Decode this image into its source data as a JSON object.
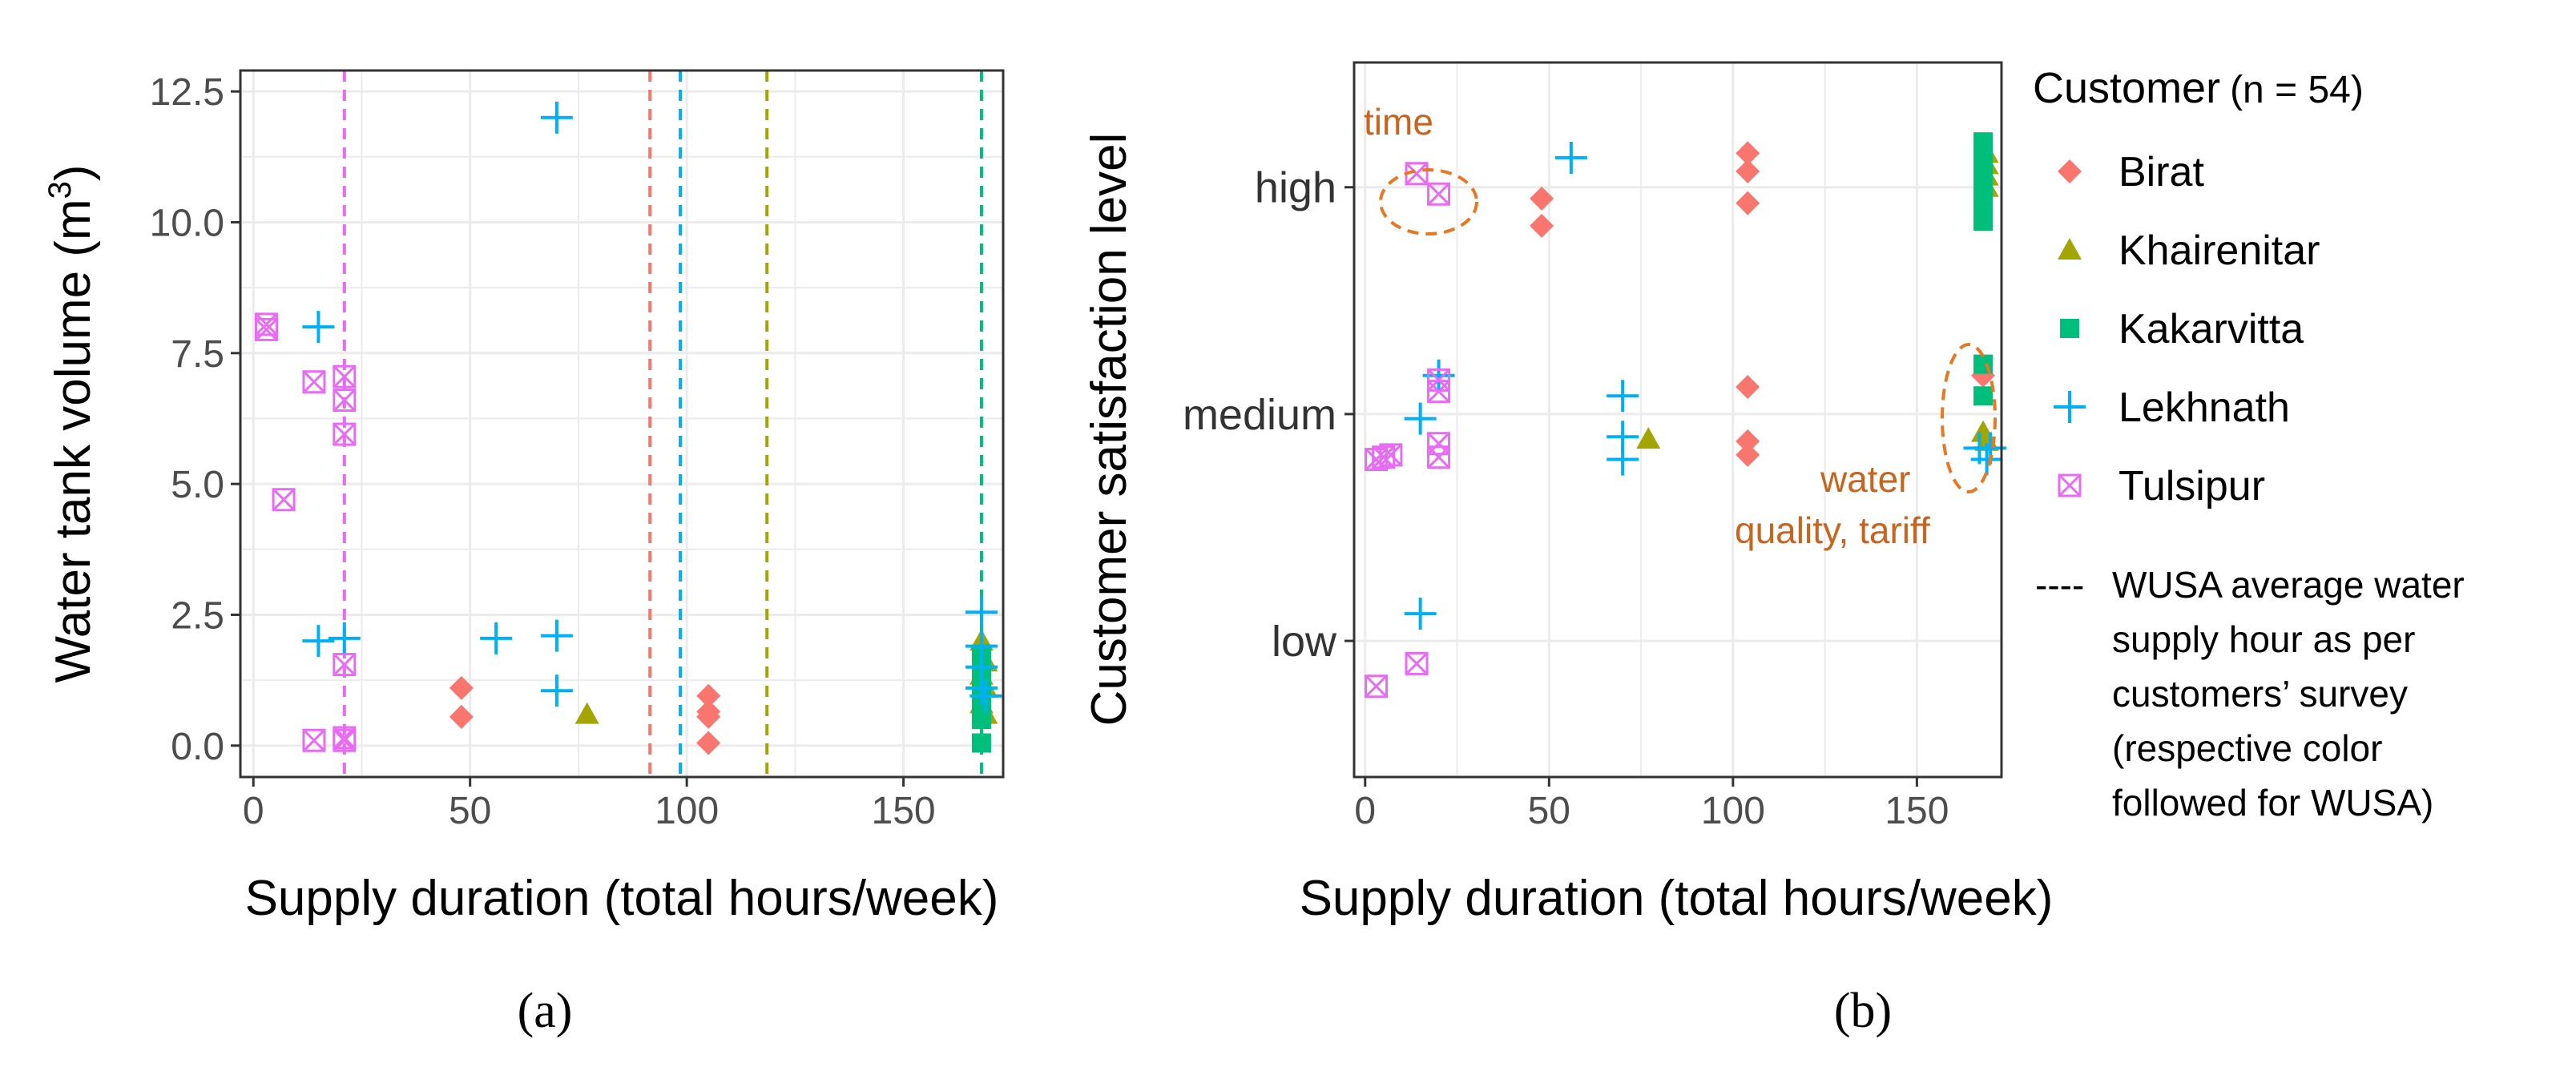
{
  "chart_data": [
    {
      "panel": "a",
      "panel_label": "(a)",
      "type": "scatter",
      "xlabel": "Supply duration (total hours/week)",
      "ylabel": "Water tank volume (m",
      "ylabel_sup": "3",
      "ylabel_close": ")",
      "xlim": [
        -3,
        173
      ],
      "ylim": [
        -0.6,
        12.9
      ],
      "xticks": [
        0,
        50,
        100,
        150
      ],
      "yticks": [
        0.0,
        2.5,
        5.0,
        7.5,
        10.0,
        12.5
      ],
      "ytick_labels": [
        "0.0",
        "2.5",
        "5.0",
        "7.5",
        "10.0",
        "12.5"
      ],
      "grid": true,
      "vlines": [
        {
          "x": 21,
          "group": "Tulsipur"
        },
        {
          "x": 91.5,
          "group": "Birat"
        },
        {
          "x": 98.5,
          "group": "Lekhnath"
        },
        {
          "x": 118.5,
          "group": "Khairenitar"
        },
        {
          "x": 168,
          "group": "Kakarvitta"
        }
      ],
      "series": [
        {
          "name": "Birat",
          "points": [
            [
              48,
              1.1
            ],
            [
              48,
              0.55
            ],
            [
              105,
              0.95
            ],
            [
              105,
              0.65
            ],
            [
              105,
              0.55
            ],
            [
              105,
              0.05
            ]
          ]
        },
        {
          "name": "Khairenitar",
          "points": [
            [
              77,
              0.6
            ],
            [
              168,
              2.0
            ],
            [
              169,
              1.6
            ],
            [
              168,
              1.35
            ],
            [
              169,
              1.1
            ],
            [
              168,
              0.8
            ],
            [
              169,
              0.6
            ]
          ]
        },
        {
          "name": "Kakarvitta",
          "points": [
            [
              168,
              1.75
            ],
            [
              168,
              1.45
            ],
            [
              168,
              1.15
            ],
            [
              168,
              0.85
            ],
            [
              168,
              0.5
            ],
            [
              168,
              0.05
            ]
          ]
        },
        {
          "name": "Lekhnath",
          "points": [
            [
              70,
              12.0
            ],
            [
              15,
              8.0
            ],
            [
              15,
              2.0
            ],
            [
              21,
              2.05
            ],
            [
              56,
              2.05
            ],
            [
              70,
              2.1
            ],
            [
              70,
              1.05
            ],
            [
              168,
              2.55
            ],
            [
              168,
              1.9
            ],
            [
              168,
              1.5
            ],
            [
              168,
              1.1
            ],
            [
              169,
              0.95
            ]
          ]
        },
        {
          "name": "Tulsipur",
          "points": [
            [
              3,
              8.05
            ],
            [
              3,
              7.95
            ],
            [
              14,
              6.95
            ],
            [
              21,
              7.05
            ],
            [
              21,
              6.6
            ],
            [
              21,
              5.95
            ],
            [
              7,
              4.7
            ],
            [
              21,
              1.55
            ],
            [
              14,
              0.1
            ],
            [
              21,
              0.1
            ],
            [
              21,
              0.15
            ]
          ]
        }
      ]
    },
    {
      "panel": "b",
      "panel_label": "(b)",
      "type": "scatter",
      "xlabel": "Supply duration (total hours/week)",
      "ylabel": "Customer satisfaction level",
      "xlim": [
        -3,
        173
      ],
      "ylim": [
        0.4,
        3.55
      ],
      "xticks": [
        0,
        50,
        100,
        150
      ],
      "categories": [
        "low",
        "medium",
        "high"
      ],
      "grid": true,
      "annotations": [
        {
          "text": "time"
        },
        {
          "text": "water"
        },
        {
          "text": "quality, tariff"
        }
      ],
      "series": [
        {
          "name": "Birat",
          "points": [
            [
              48,
              2.95
            ],
            [
              48,
              2.83
            ],
            [
              104,
              3.15
            ],
            [
              104,
              3.07
            ],
            [
              104,
              2.93
            ],
            [
              104,
              2.12
            ],
            [
              104,
              1.88
            ],
            [
              104,
              1.82
            ],
            [
              168,
              2.17
            ]
          ]
        },
        {
          "name": "Khairenitar",
          "points": [
            [
              77,
              1.89
            ],
            [
              169,
              3.15
            ],
            [
              169,
              3.1
            ],
            [
              169,
              3.05
            ],
            [
              169,
              3.0
            ],
            [
              168,
              1.92
            ],
            [
              169,
              1.88
            ]
          ]
        },
        {
          "name": "Kakarvitta",
          "points": [
            [
              168,
              3.2
            ],
            [
              168,
              3.14
            ],
            [
              168,
              3.08
            ],
            [
              168,
              3.02
            ],
            [
              168,
              2.96
            ],
            [
              168,
              2.9
            ],
            [
              168,
              2.85
            ],
            [
              168,
              2.22
            ],
            [
              168,
              2.08
            ]
          ]
        },
        {
          "name": "Lekhnath",
          "points": [
            [
              56,
              3.13
            ],
            [
              20,
              2.17
            ],
            [
              15,
              1.98
            ],
            [
              70,
              2.08
            ],
            [
              70,
              1.9
            ],
            [
              70,
              1.8
            ],
            [
              167,
              1.85
            ],
            [
              170,
              1.85
            ],
            [
              169,
              1.8
            ],
            [
              15,
              1.12
            ]
          ]
        },
        {
          "name": "Tulsipur",
          "points": [
            [
              14,
              3.06
            ],
            [
              20,
              2.97
            ],
            [
              20,
              2.15
            ],
            [
              20,
              2.1
            ],
            [
              20,
              1.87
            ],
            [
              20,
              1.81
            ],
            [
              3,
              1.8
            ],
            [
              5,
              1.81
            ],
            [
              7,
              1.82
            ],
            [
              14,
              0.9
            ],
            [
              3,
              0.8
            ]
          ]
        }
      ]
    }
  ],
  "legend": {
    "title": "Customer",
    "title_note": "(n = 54)",
    "items": [
      {
        "name": "Birat",
        "color": "#f8766d",
        "shape": "diamond"
      },
      {
        "name": "Khairenitar",
        "color": "#a3a500",
        "shape": "triangle"
      },
      {
        "name": "Kakarvitta",
        "color": "#00bf7d",
        "shape": "square"
      },
      {
        "name": "Lekhnath",
        "color": "#00b0f6",
        "shape": "plus"
      },
      {
        "name": "Tulsipur",
        "color": "#e76bf3",
        "shape": "boxx"
      }
    ],
    "dash_symbol": "----",
    "note_lines": [
      "WUSA average water",
      "supply hour as per",
      "customers’ survey",
      "(respective color",
      "followed for WUSA)"
    ]
  },
  "colors": {
    "Birat": "#f8766d",
    "Khairenitar": "#a3a500",
    "Kakarvitta": "#00bf7d",
    "Lekhnath": "#00b0f6",
    "Tulsipur": "#e76bf3",
    "annotation": "#c8641e",
    "grid": "#ebebeb"
  }
}
